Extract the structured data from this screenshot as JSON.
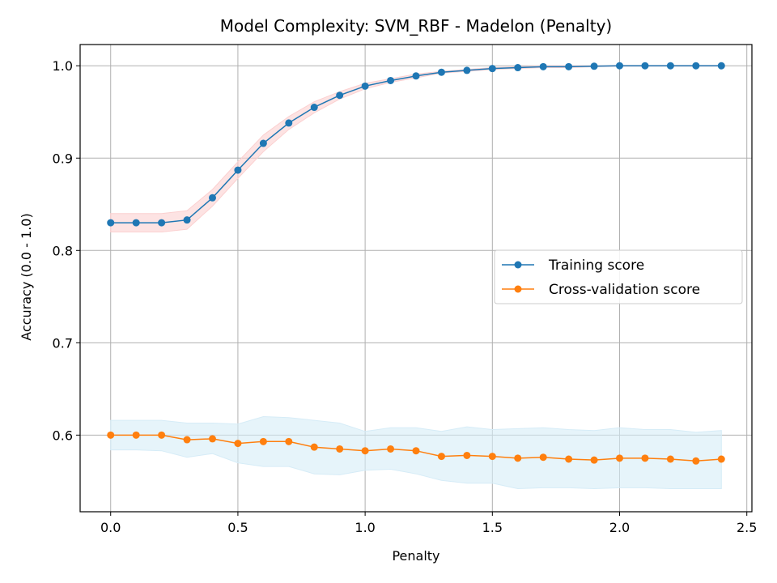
{
  "chart_data": {
    "type": "line",
    "title": "Model Complexity: SVM_RBF - Madelon (Penalty)",
    "xlabel": "Penalty",
    "ylabel": "Accuracy (0.0 - 1.0)",
    "xlim": [
      -0.12,
      2.52
    ],
    "ylim": [
      0.517,
      1.023
    ],
    "x_ticks": [
      0.0,
      0.5,
      1.0,
      1.5,
      2.0,
      2.5
    ],
    "x_tick_labels": [
      "0.0",
      "0.5",
      "1.0",
      "1.5",
      "2.0",
      "2.5"
    ],
    "y_ticks": [
      0.6,
      0.7,
      0.8,
      0.9,
      1.0
    ],
    "y_tick_labels": [
      "0.6",
      "0.7",
      "0.8",
      "0.9",
      "1.0"
    ],
    "grid": true,
    "legend_position": "center-right",
    "x": [
      0.0,
      0.1,
      0.2,
      0.3,
      0.4,
      0.5,
      0.6,
      0.7,
      0.8,
      0.9,
      1.0,
      1.1,
      1.2,
      1.3,
      1.4,
      1.5,
      1.6,
      1.7,
      1.8,
      1.9,
      2.0,
      2.1,
      2.2,
      2.3,
      2.4
    ],
    "series": [
      {
        "name": "Training score",
        "color": "#1f77b4",
        "band_color": "#fbd0d0",
        "values": [
          0.83,
          0.83,
          0.83,
          0.833,
          0.857,
          0.887,
          0.916,
          0.938,
          0.955,
          0.968,
          0.978,
          0.984,
          0.989,
          0.993,
          0.995,
          0.997,
          0.998,
          0.999,
          0.999,
          0.9995,
          1.0,
          1.0,
          1.0,
          1.0,
          1.0
        ],
        "band_lower": [
          0.82,
          0.82,
          0.82,
          0.823,
          0.848,
          0.878,
          0.907,
          0.931,
          0.949,
          0.964,
          0.975,
          0.982,
          0.987,
          0.992,
          0.994,
          0.996,
          0.997,
          0.998,
          0.998,
          0.999,
          0.9995,
          0.9995,
          0.9995,
          0.9995,
          0.9995
        ],
        "band_upper": [
          0.84,
          0.84,
          0.84,
          0.843,
          0.866,
          0.896,
          0.925,
          0.945,
          0.961,
          0.972,
          0.981,
          0.986,
          0.991,
          0.994,
          0.996,
          0.998,
          0.999,
          1.0,
          1.0,
          1.0,
          1.0005,
          1.0005,
          1.0005,
          1.0005,
          1.0005
        ]
      },
      {
        "name": "Cross-validation score",
        "color": "#ff7f0e",
        "band_color": "#d6ecf7",
        "values": [
          0.6,
          0.6,
          0.6,
          0.595,
          0.596,
          0.591,
          0.593,
          0.593,
          0.587,
          0.585,
          0.583,
          0.585,
          0.583,
          0.577,
          0.578,
          0.577,
          0.575,
          0.576,
          0.574,
          0.573,
          0.575,
          0.575,
          0.574,
          0.572,
          0.574
        ],
        "band_lower": [
          0.584,
          0.584,
          0.583,
          0.576,
          0.58,
          0.57,
          0.566,
          0.566,
          0.558,
          0.557,
          0.562,
          0.563,
          0.558,
          0.551,
          0.548,
          0.548,
          0.542,
          0.543,
          0.543,
          0.542,
          0.543,
          0.543,
          0.542,
          0.542,
          0.542
        ],
        "band_upper": [
          0.616,
          0.616,
          0.616,
          0.613,
          0.613,
          0.612,
          0.62,
          0.619,
          0.616,
          0.613,
          0.604,
          0.608,
          0.608,
          0.604,
          0.609,
          0.606,
          0.607,
          0.608,
          0.606,
          0.605,
          0.608,
          0.606,
          0.606,
          0.603,
          0.605
        ]
      }
    ]
  }
}
